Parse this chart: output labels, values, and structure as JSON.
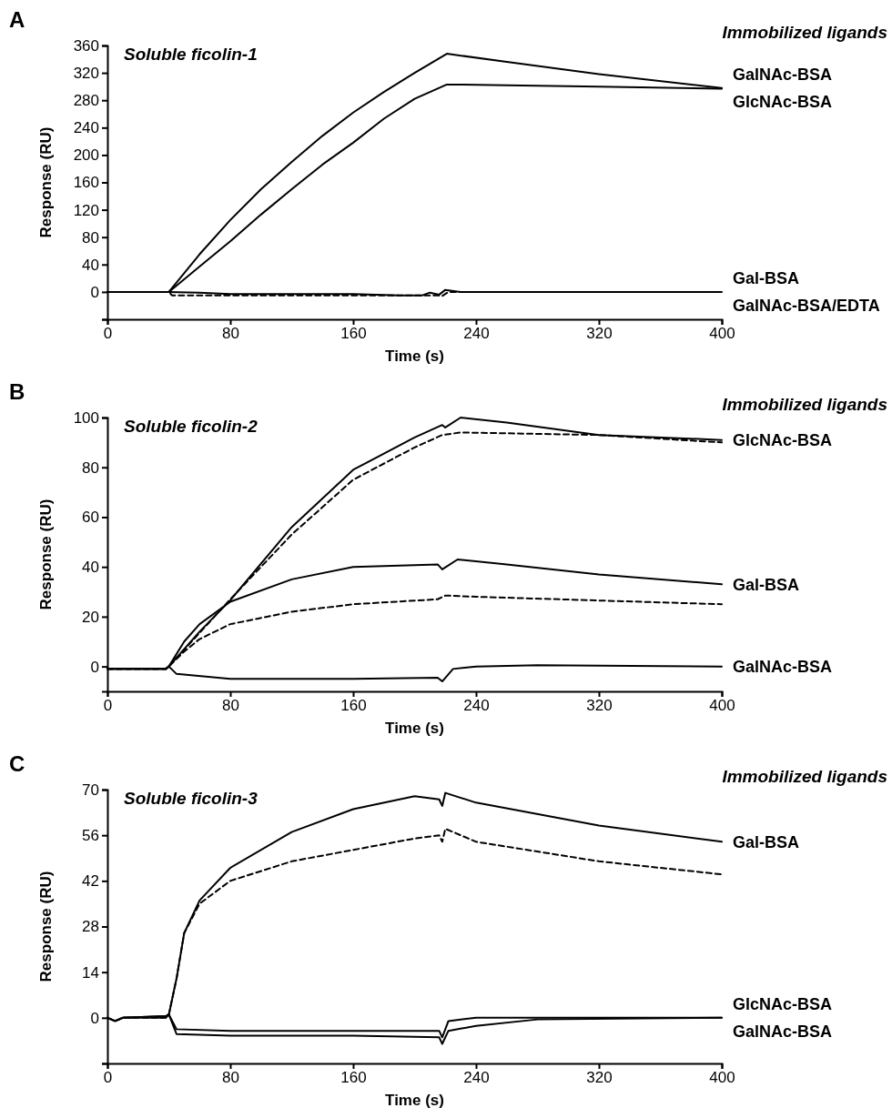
{
  "chart_data": [
    {
      "type": "line",
      "title": "Soluble ficolin-1",
      "legend_title": "Immobilized ligands",
      "xlabel": "Time (s)",
      "ylabel": "Response (RU)",
      "annotations": [
        "A"
      ],
      "xlim": [
        0,
        400
      ],
      "xticks": [
        0,
        80,
        160,
        240,
        320,
        400
      ],
      "ylim": [
        -40,
        360
      ],
      "yticks": [
        {
          "value": -40,
          "label": null
        },
        0,
        40,
        80,
        120,
        160,
        200,
        240,
        280,
        320,
        360
      ],
      "series": [
        {
          "name": "GalNAc-BSA",
          "color": "#000000",
          "x": [
            0,
            40,
            60,
            80,
            100,
            120,
            140,
            160,
            180,
            200,
            221,
            260,
            320,
            400
          ],
          "values": [
            0,
            0,
            55,
            105,
            150,
            190,
            228,
            262,
            292,
            320,
            348,
            336,
            318,
            298
          ]
        },
        {
          "name": "GlcNAc-BSA",
          "color": "#000000",
          "x": [
            0,
            40,
            60,
            80,
            100,
            120,
            140,
            160,
            180,
            200,
            221,
            260,
            320,
            400
          ],
          "values": [
            0,
            0,
            37,
            74,
            113,
            150,
            186,
            218,
            253,
            282,
            303,
            302,
            300,
            297
          ]
        },
        {
          "name": "Gal-BSA",
          "color": "#000000",
          "x": [
            0,
            40,
            60,
            80,
            160,
            190,
            205,
            210,
            216,
            220,
            230,
            400
          ],
          "values": [
            0,
            0,
            -1,
            -3,
            -3,
            -5,
            -5,
            -1,
            -4,
            3,
            0,
            0
          ]
        },
        {
          "name": "GalNAc-BSA/EDTA",
          "color": "#000000",
          "line_style": "dashed",
          "x": [
            0,
            40,
            42,
            120,
            215,
            218,
            222,
            400
          ],
          "values": [
            0,
            0,
            -5,
            -5,
            -5,
            -6,
            0,
            0
          ]
        }
      ]
    },
    {
      "type": "line",
      "title": "Soluble ficolin-2",
      "legend_title": "Immobilized ligands",
      "xlabel": "Time (s)",
      "ylabel": "Response (RU)",
      "annotations": [
        "B"
      ],
      "xlim": [
        0,
        400
      ],
      "xticks": [
        0,
        80,
        160,
        240,
        320,
        400
      ],
      "ylim": [
        -10,
        100
      ],
      "yticks": [
        0,
        20,
        40,
        60,
        80,
        100
      ],
      "series": [
        {
          "name": "GlcNAc-BSA",
          "color": "#000000",
          "x": [
            0,
            38,
            40,
            60,
            80,
            120,
            160,
            200,
            218,
            220,
            230,
            260,
            320,
            400
          ],
          "values": [
            -1,
            -1,
            0,
            14,
            26.6,
            56,
            79,
            92,
            97,
            96,
            100,
            98,
            93,
            91
          ]
        },
        {
          "color": "#000000",
          "line_style": "dashed",
          "x": [
            0,
            38,
            40,
            80,
            120,
            160,
            200,
            218,
            230,
            320,
            400
          ],
          "values": [
            -1,
            -1,
            0,
            27,
            53,
            75,
            88,
            93,
            94,
            93,
            90
          ]
        },
        {
          "name": "Gal-BSA",
          "color": "#000000",
          "x": [
            0,
            38,
            40,
            50,
            60,
            80,
            120,
            160,
            215,
            218,
            228,
            260,
            320,
            400
          ],
          "values": [
            -1,
            -1,
            0,
            10,
            17,
            26,
            35,
            40,
            41,
            39,
            43,
            41,
            37,
            33
          ]
        },
        {
          "color": "#000000",
          "line_style": "dashed",
          "x": [
            0,
            38,
            40,
            50,
            60,
            80,
            120,
            160,
            215,
            220,
            240,
            320,
            400
          ],
          "values": [
            -1,
            -1,
            0,
            6,
            11,
            17,
            22,
            25,
            27,
            28.5,
            28,
            26.5,
            25
          ]
        },
        {
          "name": "GalNAc-BSA",
          "color": "#000000",
          "x": [
            0,
            38,
            40,
            45,
            80,
            160,
            215,
            218,
            225,
            240,
            280,
            400
          ],
          "values": [
            -1,
            -1,
            0,
            -3,
            -5,
            -5,
            -4.5,
            -6,
            -1,
            0,
            0.5,
            0
          ]
        }
      ]
    },
    {
      "type": "line",
      "title": "Soluble ficolin-3",
      "legend_title": "Immobilized ligands",
      "xlabel": "Time (s)",
      "ylabel": "Response (RU)",
      "annotations": [
        "C"
      ],
      "xlim": [
        0,
        400
      ],
      "xticks": [
        0,
        80,
        160,
        240,
        320,
        400
      ],
      "ylim": [
        -14,
        70
      ],
      "yticks": [
        {
          "value": -14,
          "label": null
        },
        0,
        14,
        28,
        42,
        56,
        70
      ],
      "series": [
        {
          "name": "Gal-BSA",
          "color": "#000000",
          "x": [
            0,
            5,
            10,
            38,
            40,
            45,
            50,
            60,
            80,
            120,
            160,
            200,
            216,
            218,
            220,
            240,
            320,
            400
          ],
          "values": [
            0,
            -1,
            0,
            0,
            1,
            12,
            26,
            36,
            46,
            57,
            64,
            68,
            67,
            65,
            69,
            66,
            59,
            54
          ]
        },
        {
          "color": "#000000",
          "line_style": "dashed",
          "x": [
            0,
            5,
            10,
            38,
            40,
            45,
            50,
            60,
            80,
            120,
            160,
            200,
            216,
            218,
            220,
            240,
            320,
            400
          ],
          "values": [
            0,
            -1,
            0,
            0,
            1,
            12,
            26,
            35,
            42,
            48,
            51.5,
            55,
            56,
            54,
            58,
            54,
            48,
            44
          ]
        },
        {
          "name": "GlcNAc-BSA",
          "color": "#000000",
          "x": [
            0,
            5,
            10,
            38,
            40,
            45,
            80,
            200,
            216,
            218,
            222,
            240,
            400
          ],
          "values": [
            0,
            -1,
            0,
            0.5,
            1,
            -3.5,
            -4,
            -4,
            -4,
            -6,
            -1,
            0,
            0
          ]
        },
        {
          "name": "GalNAc-BSA",
          "color": "#000000",
          "x": [
            0,
            5,
            10,
            38,
            40,
            45,
            80,
            160,
            216,
            218,
            222,
            240,
            280,
            400
          ],
          "values": [
            0,
            -1,
            0,
            0.5,
            1,
            -5,
            -5.5,
            -5.5,
            -6,
            -8,
            -4,
            -2.5,
            -0.5,
            0
          ]
        }
      ]
    }
  ]
}
